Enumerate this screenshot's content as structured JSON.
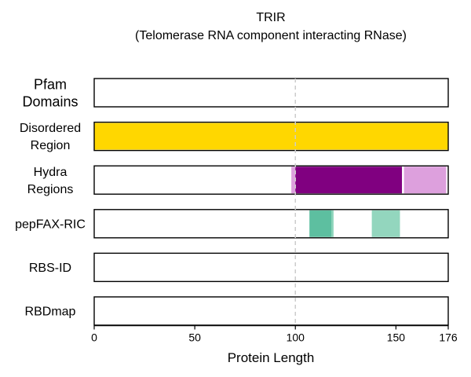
{
  "chart_data": {
    "type": "track",
    "title": "TRIR",
    "subtitle": "(Telomerase RNA component interacting RNase)",
    "xlabel": "Protein Length",
    "xlim": [
      0,
      176
    ],
    "xticks": [
      0,
      50,
      100,
      150,
      176
    ],
    "reference_line": {
      "x": 100,
      "style": "dashed",
      "color": "#cccccc"
    },
    "tracks": [
      {
        "label": [
          "Pfam",
          "Domains"
        ],
        "segments": []
      },
      {
        "label": [
          "Disordered",
          "Region"
        ],
        "segments": [
          {
            "start": 0,
            "end": 176,
            "color": "#FFD700"
          }
        ]
      },
      {
        "label": [
          "Hydra",
          "Regions"
        ],
        "segments": [
          {
            "start": 98,
            "end": 100,
            "color": "#DDA0DD"
          },
          {
            "start": 100,
            "end": 153,
            "color": "#800080"
          },
          {
            "start": 154,
            "end": 175,
            "color": "#DDA0DD"
          }
        ]
      },
      {
        "label": [
          "pepFAX-RIC"
        ],
        "segments": [
          {
            "start": 107,
            "end": 118,
            "color": "#5DBFA0"
          },
          {
            "start": 118,
            "end": 119,
            "color": "#8FD5BC"
          },
          {
            "start": 138,
            "end": 152,
            "color": "#93D6BE"
          }
        ]
      },
      {
        "label": [
          "RBS-ID"
        ],
        "segments": []
      },
      {
        "label": [
          "RBDmap"
        ],
        "segments": []
      }
    ]
  }
}
